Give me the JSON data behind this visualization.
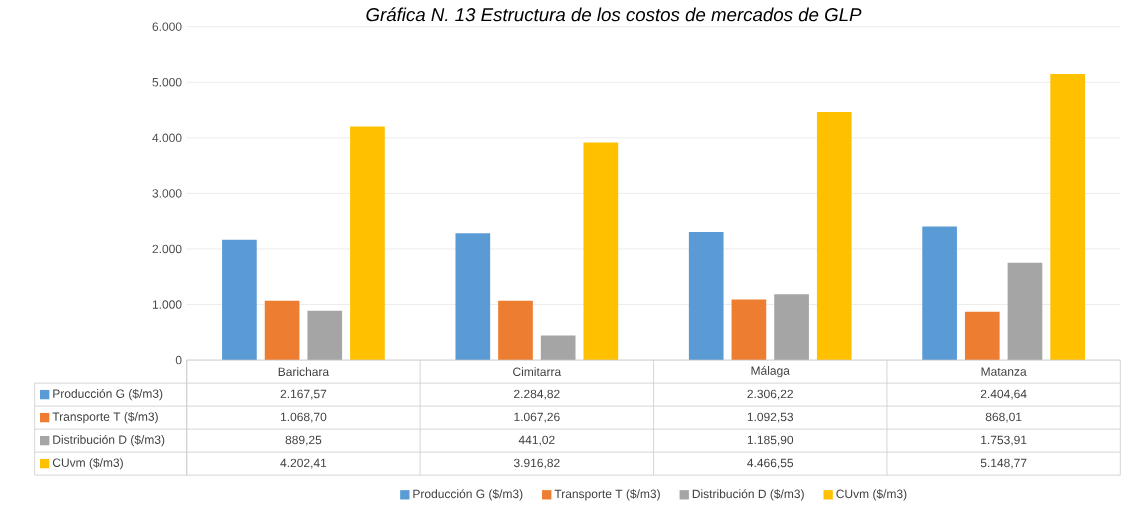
{
  "chart_data": {
    "type": "bar",
    "title": "Gráfica N. 13 Estructura de los costos de mercados de GLP",
    "categories": [
      "Barichara",
      "Cimitarra",
      "Málaga",
      "Matanza"
    ],
    "series": [
      {
        "name": "Producción G ($/m3)",
        "color": "#5b9bd5",
        "values": [
          2167.57,
          2284.82,
          2306.22,
          2404.64
        ],
        "value_labels": [
          "2.167,57",
          "2.284,82",
          "2.306,22",
          "2.404,64"
        ]
      },
      {
        "name": "Transporte  T   ($/m3)",
        "color": "#ed7d31",
        "values": [
          1068.7,
          1067.26,
          1092.53,
          868.01
        ],
        "value_labels": [
          "1.068,70",
          "1.067,26",
          "1.092,53",
          "868,01"
        ]
      },
      {
        "name": "Distribución D  ($/m3)",
        "color": "#a5a5a5",
        "values": [
          889.25,
          441.02,
          1185.9,
          1753.91
        ],
        "value_labels": [
          "889,25",
          "441,02",
          "1.185,90",
          "1.753,91"
        ]
      },
      {
        "name": "CUvm ($/m3)",
        "color": "#ffc000",
        "values": [
          4202.41,
          3916.82,
          4466.55,
          5148.77
        ],
        "value_labels": [
          "4.202,41",
          "3.916,82",
          "4.466,55",
          "5.148,77"
        ]
      }
    ],
    "ylim": [
      0,
      6000
    ],
    "yticks": [
      0,
      {
        "value": 1000,
        "label": "1.000"
      },
      {
        "value": 2000,
        "label": "2.000"
      },
      {
        "value": 3000,
        "label": "3.000"
      },
      {
        "value": 4000,
        "label": "4.000"
      },
      {
        "value": 5000,
        "label": "5.000"
      },
      {
        "value": 6000,
        "label": "6.000"
      }
    ],
    "grid": "y",
    "legend": "bottom"
  }
}
